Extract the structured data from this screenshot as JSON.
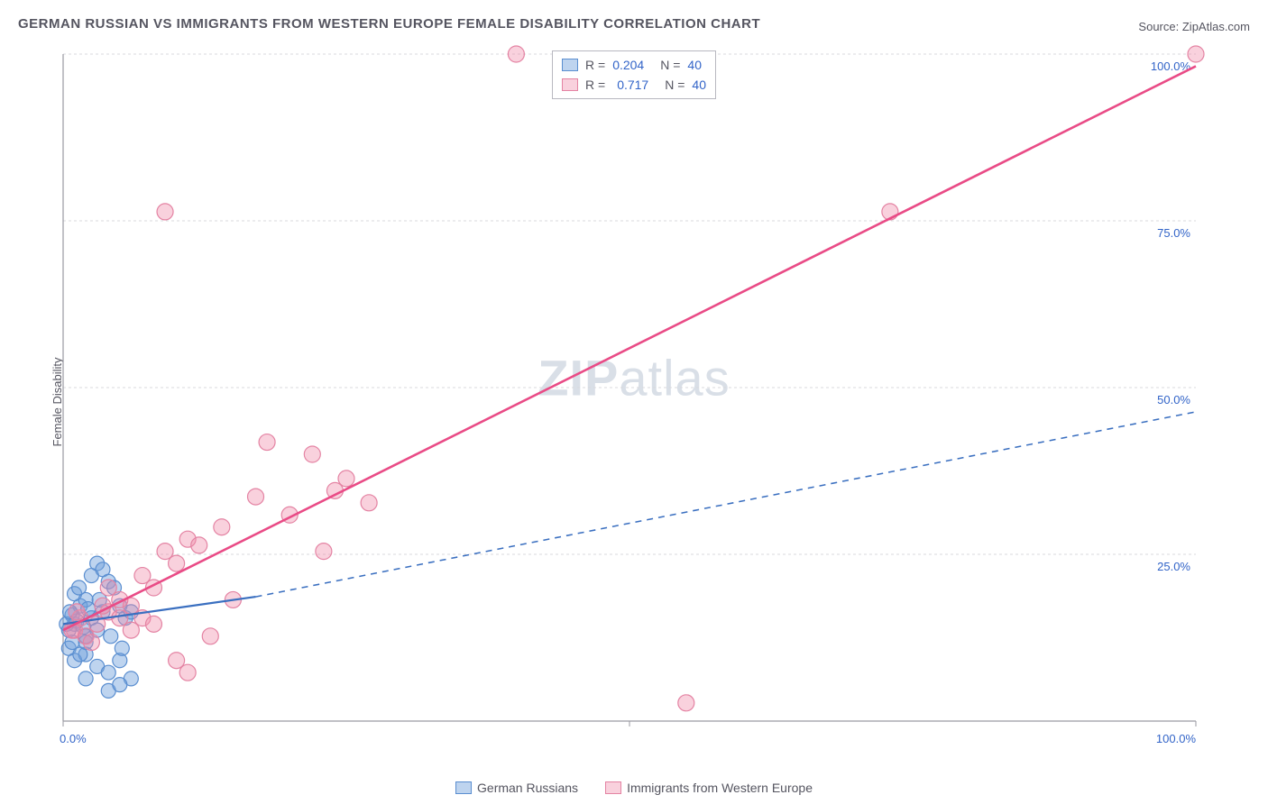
{
  "title": "GERMAN RUSSIAN VS IMMIGRANTS FROM WESTERN EUROPE FEMALE DISABILITY CORRELATION CHART",
  "source_label": "Source:",
  "source_name": "ZipAtlas.com",
  "y_axis_label": "Female Disability",
  "watermark": {
    "zip": "ZIP",
    "atlas": "atlas"
  },
  "chart": {
    "type": "scatter",
    "xlim": [
      0,
      100
    ],
    "ylim": [
      0,
      110
    ],
    "x_ticks": [
      0,
      50,
      100
    ],
    "x_tick_labels": [
      "0.0%",
      "",
      "100.0%"
    ],
    "y_grid": [
      27.5,
      55,
      82.5,
      110
    ],
    "y_tick_labels": [
      "25.0%",
      "50.0%",
      "75.0%",
      "100.0%"
    ],
    "background_color": "#ffffff",
    "grid_color": "#d8d8dc",
    "axis_color": "#9a9aa2",
    "tick_label_color": "#3264c8",
    "series": [
      {
        "name": "German Russians",
        "fill": "rgba(110,160,220,0.45)",
        "stroke": "#5a8ed0",
        "marker_radius": 8,
        "r_value": "0.204",
        "n_value": "40",
        "trend": {
          "from": [
            0,
            16
          ],
          "to_solid": [
            17,
            20.5
          ],
          "to_dash": [
            100,
            51
          ],
          "color": "#3a6fc0",
          "width": 2.2
        },
        "points": [
          [
            1,
            16
          ],
          [
            1.5,
            19
          ],
          [
            2,
            14
          ],
          [
            2.5,
            17
          ],
          [
            3,
            15
          ],
          [
            3.5,
            18
          ],
          [
            0.5,
            12
          ],
          [
            1,
            21
          ],
          [
            2,
            20
          ],
          [
            2.5,
            24
          ],
          [
            3,
            26
          ],
          [
            3.5,
            25
          ],
          [
            4,
            23
          ],
          [
            4.5,
            22
          ],
          [
            5,
            19
          ],
          [
            5.5,
            17
          ],
          [
            6,
            18
          ],
          [
            1,
            10
          ],
          [
            2,
            11
          ],
          [
            3,
            9
          ],
          [
            4,
            8
          ],
          [
            5,
            10
          ],
          [
            6,
            7
          ],
          [
            4,
            5
          ],
          [
            5,
            6
          ],
          [
            2,
            7
          ],
          [
            0.8,
            17.5
          ],
          [
            1.2,
            16.5
          ],
          [
            1.8,
            15.5
          ],
          [
            2.2,
            18.5
          ],
          [
            0.5,
            15
          ],
          [
            0.8,
            13
          ],
          [
            1.5,
            11
          ],
          [
            2,
            13
          ],
          [
            3.2,
            20
          ],
          [
            4.2,
            14
          ],
          [
            5.2,
            12
          ],
          [
            0.3,
            16
          ],
          [
            0.6,
            18
          ],
          [
            1.4,
            22
          ]
        ]
      },
      {
        "name": "Immigrants from Western Europe",
        "fill": "rgba(240,140,170,0.40)",
        "stroke": "#e483a3",
        "marker_radius": 9,
        "r_value": "0.717",
        "n_value": "40",
        "trend": {
          "from": [
            0,
            15
          ],
          "to_solid": [
            100,
            108
          ],
          "color": "#e94b86",
          "width": 2.6
        },
        "points": [
          [
            1,
            15
          ],
          [
            2,
            14
          ],
          [
            3,
            16
          ],
          [
            4,
            18
          ],
          [
            5,
            17
          ],
          [
            6,
            19
          ],
          [
            7,
            24
          ],
          [
            8,
            22
          ],
          [
            9,
            28
          ],
          [
            10,
            26
          ],
          [
            11,
            30
          ],
          [
            12,
            29
          ],
          [
            14,
            32
          ],
          [
            15,
            20
          ],
          [
            17,
            37
          ],
          [
            18,
            46
          ],
          [
            20,
            34
          ],
          [
            22,
            44
          ],
          [
            23,
            28
          ],
          [
            24,
            38
          ],
          [
            25,
            40
          ],
          [
            27,
            36
          ],
          [
            9,
            84
          ],
          [
            40,
            110
          ],
          [
            55,
            3
          ],
          [
            73,
            84
          ],
          [
            100,
            110
          ],
          [
            10,
            10
          ],
          [
            11,
            8
          ],
          [
            13,
            14
          ],
          [
            6,
            15
          ],
          [
            7,
            17
          ],
          [
            8,
            16
          ],
          [
            4,
            22
          ],
          [
            5,
            20
          ],
          [
            1.5,
            17
          ],
          [
            2.5,
            13
          ],
          [
            3.5,
            19
          ],
          [
            0.8,
            15
          ],
          [
            1.2,
            18
          ]
        ]
      }
    ],
    "stats_legend": {
      "r_label": "R =",
      "n_label": "N ="
    },
    "bottom_legend": [
      {
        "label": "German Russians",
        "fill": "rgba(110,160,220,0.45)",
        "stroke": "#5a8ed0"
      },
      {
        "label": "Immigrants from Western Europe",
        "fill": "rgba(240,140,170,0.40)",
        "stroke": "#e483a3"
      }
    ]
  }
}
